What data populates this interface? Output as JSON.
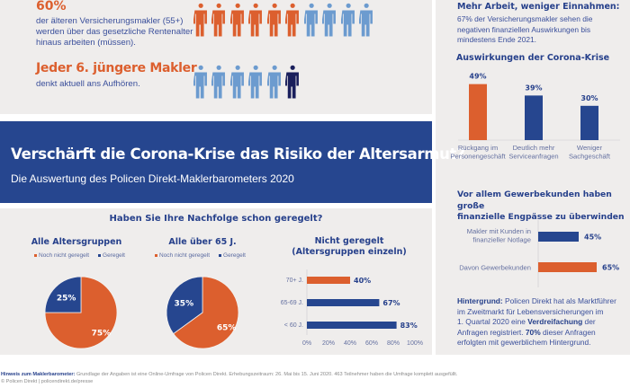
{
  "colors": {
    "orange": "#dc5f2e",
    "light_blue": "#6c9bcf",
    "navy": "#26408b",
    "dark_navy": "#1a1f5c",
    "banner_blue": "#26468f",
    "panel_bg": "#efedec"
  },
  "stats": {
    "older": {
      "headline": "60%",
      "description": [
        "der älteren Versicherungsmakler (55+)",
        "werden über das gesetzliche Rentenalter",
        "hinaus arbeiten (müssen)."
      ],
      "figures": {
        "total": 10,
        "highlighted": 6,
        "highlight_color": "orange",
        "base_color": "light_blue"
      }
    },
    "younger": {
      "headline": "Jeder 6. jüngere Makler",
      "description": [
        "denkt aktuell ans Aufhören."
      ],
      "figures": {
        "total": 6,
        "highlighted": 1,
        "highlight_color": "dark_navy",
        "base_color": "light_blue",
        "highlight_position": "last"
      }
    }
  },
  "banner": {
    "title": "Verschärft die Corona-Krise das Risiko der Altersarmut?",
    "subtitle": "Die Auswertung des Policen Direkt-Maklerbarometers 2020"
  },
  "succession": {
    "title": "Haben Sie Ihre Nachfolge schon geregelt?",
    "legend": {
      "not_settled": "Noch nicht geregelt",
      "settled": "Geregelt"
    }
  },
  "right": {
    "heading": "Mehr Arbeit, weniger Einnahmen:",
    "intro": [
      "67% der Versicherungsmakler sehen die",
      "negativen finanziellen Auswirkungen bis",
      "mindestens Ende 2021."
    ],
    "background": {
      "label": "Hintergrund:",
      "lines_html": [
        "Policen Direkt hat als Marktführer",
        "im Zweitmarkt für Lebensversicherungen im",
        "1. Quartal 2020 eine ",
        "Verdreifachung",
        " der",
        "Anfragen registriert. ",
        "70%",
        " dieser Anfragen",
        "erfolgten mit gewerblichem Hintergrund."
      ]
    }
  },
  "footer": {
    "note_label": "Hinweis zum Maklerbarometer:",
    "note_text": " Grundlage der Angaben ist eine Online-Umfrage von Policen Direkt. Erhebungszeitraum: 26. Mai bis 15. Juni 2020. 463 Teilnehmer haben die Umfrage komplett ausgefüllt.",
    "copyright": "© Policen Direkt | policendirekt.de/presse"
  },
  "chart_data": [
    {
      "id": "pie-all",
      "type": "pie",
      "title": "Alle Altersgruppen",
      "labels": [
        "Noch nicht geregelt",
        "Geregelt"
      ],
      "values": [
        75,
        25
      ],
      "value_labels": [
        "75%",
        "25%"
      ],
      "colors": [
        "#dc5f2e",
        "#26468f"
      ]
    },
    {
      "id": "pie-65",
      "type": "pie",
      "title": "Alle über 65 J.",
      "labels": [
        "Noch nicht geregelt",
        "Geregelt"
      ],
      "values": [
        65,
        35
      ],
      "value_labels": [
        "65%",
        "35%"
      ],
      "colors": [
        "#dc5f2e",
        "#26468f"
      ]
    },
    {
      "id": "hbar-age",
      "type": "bar",
      "orientation": "horizontal",
      "title": "Nicht geregelt (Altersgruppen einzeln)",
      "title_lines": [
        "Nicht geregelt",
        "(Altersgruppen einzeln)"
      ],
      "categories": [
        "70+ J.",
        "65-69 J.",
        "< 60 J."
      ],
      "values": [
        40,
        67,
        83
      ],
      "value_labels": [
        "40%",
        "67%",
        "83%"
      ],
      "colors": [
        "#dc5f2e",
        "#26468f",
        "#26468f"
      ],
      "xlim": [
        0,
        100
      ],
      "xticks": [
        "0%",
        "20%",
        "40%",
        "60%",
        "80%",
        "100%"
      ]
    },
    {
      "id": "vbar-corona",
      "type": "bar",
      "orientation": "vertical",
      "title": "Auswirkungen der Corona-Krise",
      "categories": [
        [
          "Rückgang im",
          "Personengeschäft"
        ],
        [
          "Deutlich mehr",
          "Serviceanfragen"
        ],
        [
          "Weniger",
          "Sachgeschäft"
        ]
      ],
      "values": [
        49,
        39,
        30
      ],
      "value_labels": [
        "49%",
        "39%",
        "30%"
      ],
      "colors": [
        "#dc5f2e",
        "#26468f",
        "#26468f"
      ],
      "ylim": [
        0,
        55
      ]
    },
    {
      "id": "hbar-business",
      "type": "bar",
      "orientation": "horizontal",
      "title": "Vor allem Gewerbekunden haben große finanzielle Engpässe zu überwinden",
      "title_lines": [
        "Vor allem Gewerbekunden haben große",
        "finanzielle Engpässe zu überwinden"
      ],
      "categories": [
        [
          "Makler mit Kunden in",
          "finanzieller Notlage"
        ],
        [
          "Davon Gewerbekunden"
        ]
      ],
      "values": [
        45,
        65
      ],
      "value_labels": [
        "45%",
        "65%"
      ],
      "colors": [
        "#26468f",
        "#dc5f2e"
      ],
      "xlim": [
        0,
        70
      ]
    }
  ]
}
